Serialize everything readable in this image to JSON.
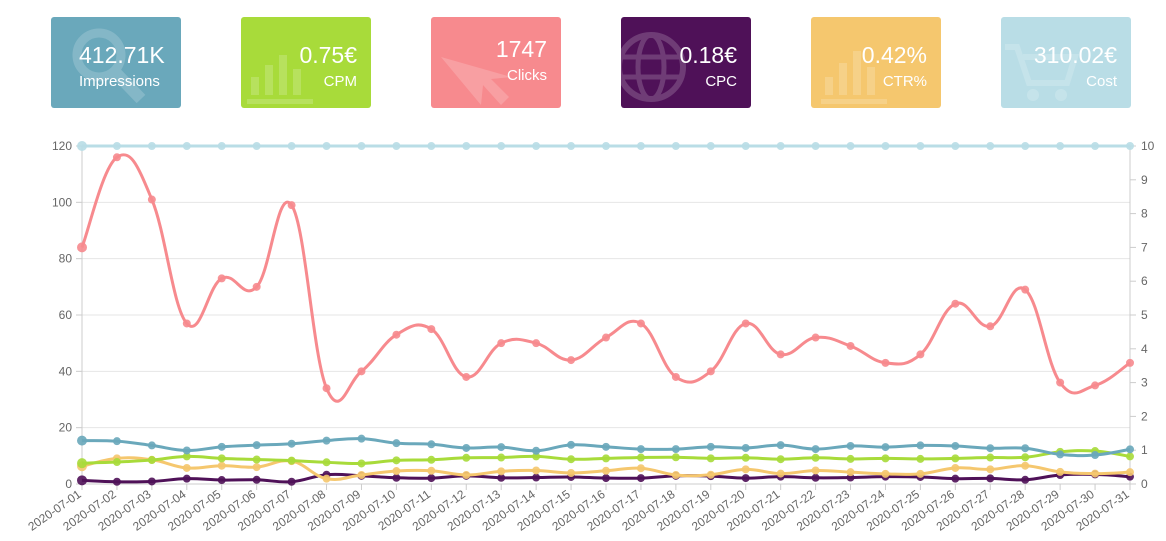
{
  "cards": [
    {
      "value": "412.71K",
      "label": "Impressions",
      "color": "#6aa8bb",
      "icon": "search-icon"
    },
    {
      "value": "0.75€",
      "label": "CPM",
      "color": "#a8db3a",
      "icon": "bar-chart-icon"
    },
    {
      "value": "1747",
      "label": "Clicks",
      "color": "#f78a8e",
      "icon": "cursor-icon"
    },
    {
      "value": "0.18€",
      "label": "CPC",
      "color": "#4f1158",
      "icon": "globe-icon"
    },
    {
      "value": "0.42%",
      "label": "CTR%",
      "color": "#f5c76e",
      "icon": "bar-chart-icon"
    },
    {
      "value": "310.02€",
      "label": "Cost",
      "color": "#b9dde6",
      "icon": "cart-icon"
    }
  ],
  "chart_data": {
    "type": "line",
    "x": [
      "2020-07-01",
      "2020-07-02",
      "2020-07-03",
      "2020-07-04",
      "2020-07-05",
      "2020-07-06",
      "2020-07-07",
      "2020-07-08",
      "2020-07-09",
      "2020-07-10",
      "2020-07-11",
      "2020-07-12",
      "2020-07-13",
      "2020-07-14",
      "2020-07-15",
      "2020-07-16",
      "2020-07-17",
      "2020-07-18",
      "2020-07-19",
      "2020-07-20",
      "2020-07-21",
      "2020-07-22",
      "2020-07-23",
      "2020-07-24",
      "2020-07-25",
      "2020-07-26",
      "2020-07-27",
      "2020-07-28",
      "2020-07-29",
      "2020-07-30",
      "2020-07-31"
    ],
    "y_left": {
      "min": 0,
      "max": 120,
      "ticks": [
        0,
        20,
        40,
        60,
        80,
        100,
        120
      ]
    },
    "y_right": {
      "min": 0,
      "max": 10,
      "ticks": [
        0,
        1,
        2,
        3,
        4,
        5,
        6,
        7,
        8,
        9,
        10
      ]
    },
    "grid": true,
    "series": [
      {
        "color": "#f78a8e",
        "axis": "left",
        "values": [
          84,
          116,
          101,
          57,
          73,
          70,
          99,
          34,
          40,
          53,
          55,
          38,
          50,
          50,
          44,
          52,
          57,
          38,
          40,
          57,
          46,
          52,
          49,
          43,
          46,
          64,
          56,
          69,
          36,
          35,
          43
        ]
      },
      {
        "color": "#6aa8bb",
        "axis": "left",
        "values": [
          15.4,
          15.2,
          13.7,
          11.9,
          13.2,
          13.8,
          14.3,
          15.4,
          16.1,
          14.5,
          14.1,
          12.8,
          13.1,
          11.8,
          13.9,
          13.2,
          12.4,
          12.4,
          13.2,
          12.8,
          13.8,
          12.4,
          13.5,
          13.1,
          13.7,
          13.5,
          12.7,
          12.7,
          10.5,
          10.3,
          12.3
        ]
      },
      {
        "color": "#a8db3a",
        "axis": "left",
        "values": [
          7.4,
          7.8,
          8.5,
          9.8,
          9.1,
          8.7,
          8.3,
          7.7,
          7.3,
          8.4,
          8.6,
          9.3,
          9.4,
          9.8,
          8.8,
          9.1,
          9.4,
          9.5,
          9.1,
          9.3,
          8.8,
          9.3,
          8.9,
          9.1,
          8.9,
          9.1,
          9.4,
          9.5,
          11.4,
          11.7,
          9.8
        ]
      },
      {
        "color": "#f5c76e",
        "axis": "left",
        "values": [
          6.3,
          9.1,
          8.6,
          5.7,
          6.5,
          6.0,
          8.1,
          1.9,
          3.2,
          4.6,
          4.7,
          3.2,
          4.5,
          4.8,
          3.9,
          4.7,
          5.6,
          3.2,
          3.3,
          5.2,
          3.7,
          4.8,
          4.2,
          3.6,
          3.6,
          5.7,
          5.2,
          6.5,
          4.3,
          3.7,
          4.2
        ]
      },
      {
        "color": "#4f1158",
        "axis": "left",
        "values": [
          1.3,
          0.8,
          0.9,
          1.9,
          1.4,
          1.5,
          0.8,
          3.3,
          2.9,
          2.2,
          2.1,
          2.9,
          2.2,
          2.3,
          2.5,
          2.1,
          2.1,
          2.9,
          2.8,
          2.1,
          2.6,
          2.2,
          2.3,
          2.6,
          2.5,
          1.9,
          2.0,
          1.5,
          3.2,
          3.4,
          2.6
        ]
      },
      {
        "color": "#b9dde6",
        "axis": "right",
        "values": [
          10,
          10,
          10,
          10,
          10,
          10,
          10,
          10,
          10,
          10,
          10,
          10,
          10,
          10,
          10,
          10,
          10,
          10,
          10,
          10,
          10,
          10,
          10,
          10,
          10,
          10,
          10,
          10,
          10,
          10,
          10
        ]
      }
    ]
  }
}
